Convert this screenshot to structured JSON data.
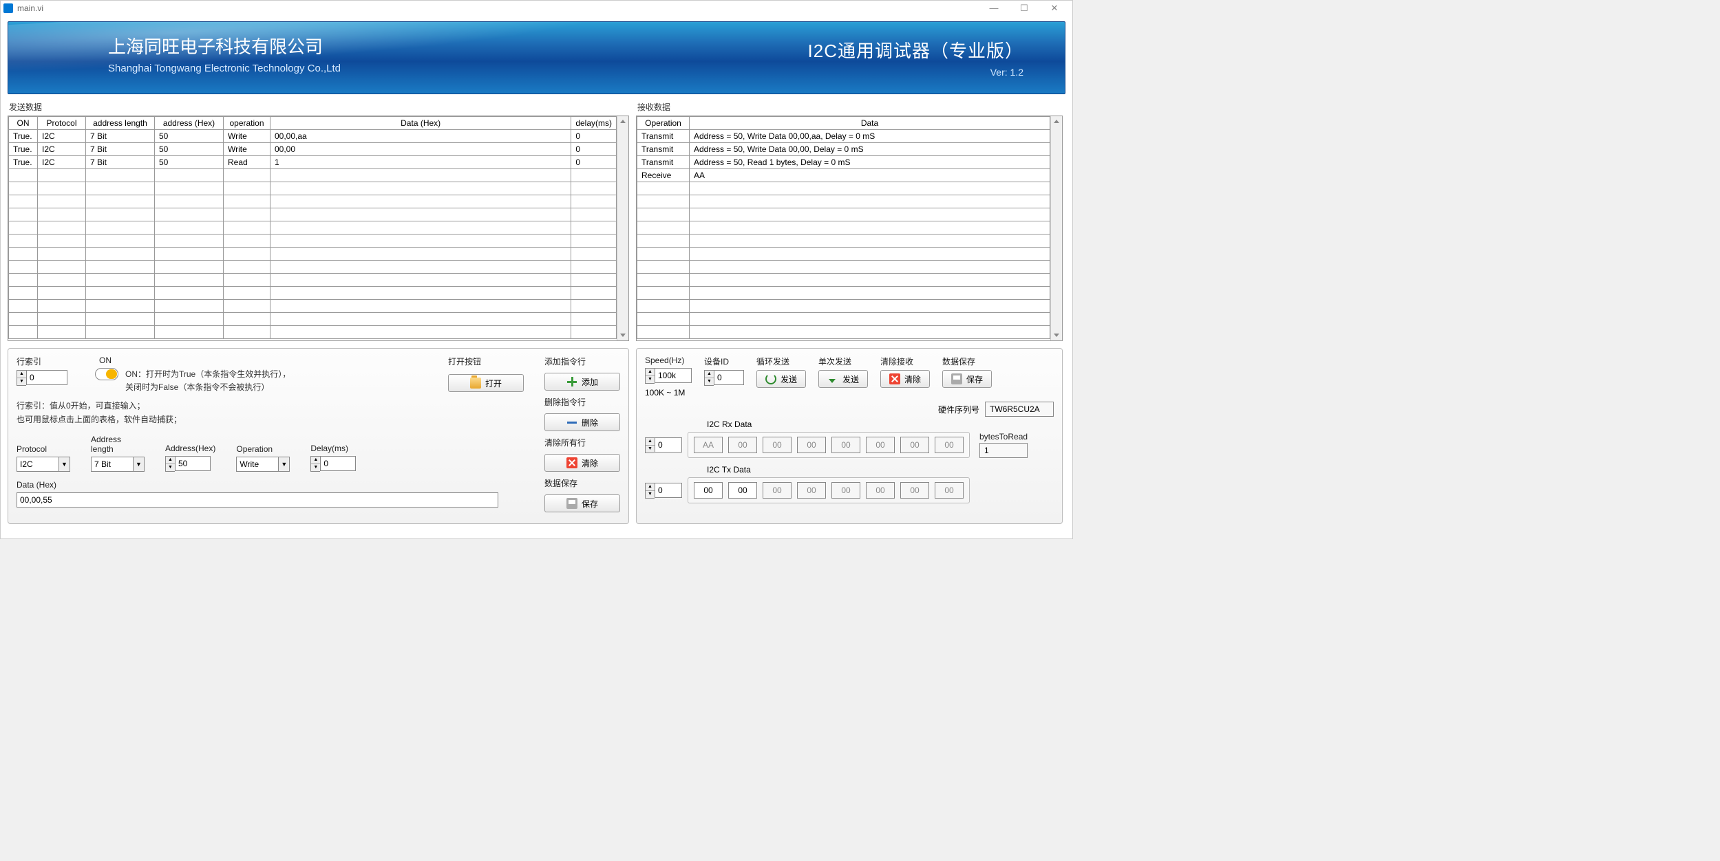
{
  "window": {
    "title": "main.vi"
  },
  "header": {
    "company_cn": "上海同旺电子科技有限公司",
    "company_en": "Shanghai Tongwang Electronic Technology Co.,Ltd",
    "product": "I2C通用调试器（专业版）",
    "version": "Ver:  1.2"
  },
  "send_panel": {
    "title": "发送数据",
    "columns": [
      "ON",
      "Protocol",
      "address length",
      "address (Hex)",
      "operation",
      "Data (Hex)",
      "delay(ms)"
    ],
    "rows": [
      [
        "True.",
        "I2C",
        "7 Bit",
        "50",
        "Write",
        "00,00,aa",
        "0"
      ],
      [
        "True.",
        "I2C",
        "7 Bit",
        "50",
        "Write",
        "00,00",
        "0"
      ],
      [
        "True.",
        "I2C",
        "7 Bit",
        "50",
        "Read",
        "1",
        "0"
      ]
    ],
    "empty_rows": 13
  },
  "recv_panel": {
    "title": "接收数据",
    "columns": [
      "Operation",
      "Data"
    ],
    "rows": [
      [
        "Transmit",
        "Address = 50,    Write Data 00,00,aa,     Delay = 0 mS"
      ],
      [
        "Transmit",
        "Address = 50,    Write Data 00,00,     Delay = 0 mS"
      ],
      [
        "Transmit",
        "Address = 50,    Read 1 bytes,     Delay = 0 mS"
      ],
      [
        "Receive",
        "AA"
      ]
    ],
    "empty_rows": 12
  },
  "left_controls": {
    "row_index_label": "行索引",
    "row_index_value": "0",
    "on_label": "ON",
    "on_desc1": "ON：打开时为True（本条指令生效并执行），",
    "on_desc2": "关闭时为False（本条指令不会被执行）",
    "hint1": "行索引：值从0开始，可直接输入；",
    "hint2": "也可用鼠标点击上面的表格，软件自动捕获；",
    "protocol_label": "Protocol",
    "protocol_value": "I2C",
    "addrlen_label": "Address length",
    "addrlen_value": "7 Bit",
    "address_label": "Address(Hex)",
    "address_value": "50",
    "operation_label": "Operation",
    "operation_value": "Write",
    "delay_label": "Delay(ms)",
    "delay_value": "0",
    "data_label": "Data (Hex)",
    "data_value": "00,00,55",
    "open_group": "打开按钮",
    "open_btn": "打开",
    "add_group": "添加指令行",
    "add_btn": "添加",
    "del_group": "删除指令行",
    "del_btn": "删除",
    "clear_group": "清除所有行",
    "clear_btn": "清除",
    "save_group": "数据保存",
    "save_btn": "保存"
  },
  "right_controls": {
    "speed_label": "Speed(Hz)",
    "speed_value": "100k",
    "speed_range": "100K ~ 1M",
    "devid_label": "设备ID",
    "devid_value": "0",
    "loop_label": "循环发送",
    "loop_btn": "发送",
    "single_label": "单次发送",
    "single_btn": "发送",
    "clear_label": "清除接收",
    "clear_btn": "清除",
    "save_label": "数据保存",
    "save_btn": "保存",
    "serial_label": "硬件序列号",
    "serial_value": "TW6R5CU2A",
    "rx_label": "I2C Rx Data",
    "rx_index": "0",
    "rx_values": [
      "AA",
      "00",
      "00",
      "00",
      "00",
      "00",
      "00",
      "00"
    ],
    "bytes_label": "bytesToRead",
    "bytes_value": "1",
    "tx_label": "I2C Tx Data",
    "tx_index": "0",
    "tx_values": [
      "00",
      "00",
      "00",
      "00",
      "00",
      "00",
      "00",
      "00"
    ],
    "tx_active_count": 2
  }
}
